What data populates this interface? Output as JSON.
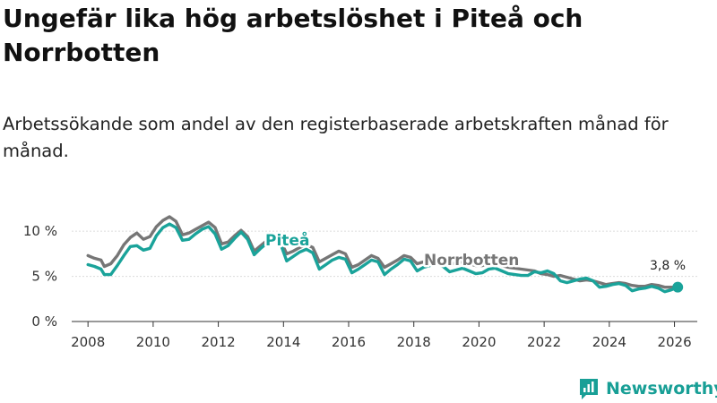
{
  "chart_data": {
    "type": "line",
    "title": "Ungefär lika hög arbetslöshet i Piteå och Norrbotten",
    "subtitle": "Arbetssökande som andel av den registerbaserade arbetskraften månad för månad.",
    "xlabel": "",
    "ylabel": "",
    "xlim": [
      2007.5,
      2026.7
    ],
    "ylim": [
      0,
      12
    ],
    "x_ticks": [
      {
        "value": 2008,
        "label": "2008"
      },
      {
        "value": 2010,
        "label": "2010"
      },
      {
        "value": 2012,
        "label": "2012"
      },
      {
        "value": 2014,
        "label": "2014"
      },
      {
        "value": 2016,
        "label": "2016"
      },
      {
        "value": 2018,
        "label": "2018"
      },
      {
        "value": 2020,
        "label": "2020"
      },
      {
        "value": 2022,
        "label": "2022"
      },
      {
        "value": 2024,
        "label": "2024"
      },
      {
        "value": 2026,
        "label": "2026"
      }
    ],
    "y_ticks": [
      {
        "value": 0,
        "label": "0 %"
      },
      {
        "value": 5,
        "label": "5 %"
      },
      {
        "value": 10,
        "label": "10 %"
      }
    ],
    "series": [
      {
        "name": "Norrbotten",
        "color": "#767676",
        "points": [
          [
            2008.0,
            7.3
          ],
          [
            2008.2,
            7.0
          ],
          [
            2008.4,
            6.8
          ],
          [
            2008.5,
            6.1
          ],
          [
            2008.7,
            6.4
          ],
          [
            2008.9,
            7.3
          ],
          [
            2009.1,
            8.5
          ],
          [
            2009.3,
            9.3
          ],
          [
            2009.5,
            9.8
          ],
          [
            2009.7,
            9.1
          ],
          [
            2009.9,
            9.4
          ],
          [
            2010.1,
            10.5
          ],
          [
            2010.3,
            11.2
          ],
          [
            2010.5,
            11.6
          ],
          [
            2010.7,
            11.1
          ],
          [
            2010.9,
            9.6
          ],
          [
            2011.1,
            9.8
          ],
          [
            2011.3,
            10.2
          ],
          [
            2011.5,
            10.6
          ],
          [
            2011.7,
            11.0
          ],
          [
            2011.9,
            10.4
          ],
          [
            2012.1,
            8.6
          ],
          [
            2012.3,
            8.8
          ],
          [
            2012.5,
            9.5
          ],
          [
            2012.7,
            10.1
          ],
          [
            2012.9,
            9.4
          ],
          [
            2013.1,
            7.8
          ],
          [
            2013.3,
            8.4
          ],
          [
            2013.5,
            9.0
          ],
          [
            2013.7,
            9.6
          ],
          [
            2013.9,
            9.0
          ],
          [
            2014.1,
            7.5
          ],
          [
            2014.3,
            7.8
          ],
          [
            2014.5,
            8.2
          ],
          [
            2014.7,
            8.5
          ],
          [
            2014.9,
            8.2
          ],
          [
            2015.1,
            6.6
          ],
          [
            2015.3,
            7.0
          ],
          [
            2015.5,
            7.4
          ],
          [
            2015.7,
            7.8
          ],
          [
            2015.9,
            7.5
          ],
          [
            2016.1,
            6.0
          ],
          [
            2016.3,
            6.3
          ],
          [
            2016.5,
            6.8
          ],
          [
            2016.7,
            7.3
          ],
          [
            2016.9,
            7.0
          ],
          [
            2017.1,
            6.0
          ],
          [
            2017.3,
            6.4
          ],
          [
            2017.5,
            6.8
          ],
          [
            2017.7,
            7.3
          ],
          [
            2017.9,
            7.1
          ],
          [
            2018.1,
            6.4
          ],
          [
            2018.3,
            6.6
          ],
          [
            2018.5,
            6.8
          ],
          [
            2018.7,
            7.0
          ],
          [
            2018.9,
            6.9
          ],
          [
            2019.1,
            6.3
          ],
          [
            2019.3,
            6.5
          ],
          [
            2019.5,
            6.6
          ],
          [
            2019.7,
            6.4
          ],
          [
            2019.9,
            6.2
          ],
          [
            2020.1,
            6.2
          ],
          [
            2020.3,
            6.5
          ],
          [
            2020.5,
            6.5
          ],
          [
            2020.7,
            6.2
          ],
          [
            2020.9,
            6.0
          ],
          [
            2021.1,
            5.9
          ],
          [
            2021.3,
            5.8
          ],
          [
            2021.5,
            5.7
          ],
          [
            2021.7,
            5.6
          ],
          [
            2021.9,
            5.3
          ],
          [
            2022.1,
            5.2
          ],
          [
            2022.3,
            5.0
          ],
          [
            2022.5,
            5.1
          ],
          [
            2022.7,
            4.9
          ],
          [
            2022.9,
            4.7
          ],
          [
            2023.1,
            4.5
          ],
          [
            2023.3,
            4.6
          ],
          [
            2023.5,
            4.5
          ],
          [
            2023.7,
            4.3
          ],
          [
            2023.9,
            4.1
          ],
          [
            2024.1,
            4.2
          ],
          [
            2024.3,
            4.3
          ],
          [
            2024.5,
            4.2
          ],
          [
            2024.7,
            4.0
          ],
          [
            2024.9,
            3.9
          ],
          [
            2025.1,
            3.9
          ],
          [
            2025.3,
            4.1
          ],
          [
            2025.5,
            4.0
          ],
          [
            2025.7,
            3.8
          ],
          [
            2025.9,
            3.8
          ],
          [
            2026.1,
            3.8
          ]
        ]
      },
      {
        "name": "Piteå",
        "color": "#1aa39a",
        "points": [
          [
            2008.0,
            6.3
          ],
          [
            2008.2,
            6.1
          ],
          [
            2008.4,
            5.8
          ],
          [
            2008.5,
            5.2
          ],
          [
            2008.7,
            5.2
          ],
          [
            2008.9,
            6.2
          ],
          [
            2009.1,
            7.3
          ],
          [
            2009.3,
            8.3
          ],
          [
            2009.5,
            8.4
          ],
          [
            2009.7,
            7.9
          ],
          [
            2009.9,
            8.1
          ],
          [
            2010.1,
            9.5
          ],
          [
            2010.3,
            10.4
          ],
          [
            2010.5,
            10.8
          ],
          [
            2010.7,
            10.4
          ],
          [
            2010.9,
            9.0
          ],
          [
            2011.1,
            9.1
          ],
          [
            2011.3,
            9.7
          ],
          [
            2011.5,
            10.2
          ],
          [
            2011.7,
            10.5
          ],
          [
            2011.9,
            9.7
          ],
          [
            2012.1,
            8.0
          ],
          [
            2012.3,
            8.4
          ],
          [
            2012.5,
            9.2
          ],
          [
            2012.7,
            9.9
          ],
          [
            2012.9,
            9.1
          ],
          [
            2013.1,
            7.4
          ],
          [
            2013.3,
            8.1
          ],
          [
            2013.5,
            8.7
          ],
          [
            2013.7,
            9.2
          ],
          [
            2013.9,
            8.7
          ],
          [
            2014.1,
            6.7
          ],
          [
            2014.3,
            7.2
          ],
          [
            2014.5,
            7.7
          ],
          [
            2014.7,
            8.0
          ],
          [
            2014.9,
            7.6
          ],
          [
            2015.1,
            5.8
          ],
          [
            2015.3,
            6.3
          ],
          [
            2015.5,
            6.8
          ],
          [
            2015.7,
            7.1
          ],
          [
            2015.9,
            6.9
          ],
          [
            2016.1,
            5.4
          ],
          [
            2016.3,
            5.8
          ],
          [
            2016.5,
            6.3
          ],
          [
            2016.7,
            6.8
          ],
          [
            2016.9,
            6.6
          ],
          [
            2017.1,
            5.2
          ],
          [
            2017.3,
            5.8
          ],
          [
            2017.5,
            6.3
          ],
          [
            2017.7,
            6.9
          ],
          [
            2017.9,
            6.7
          ],
          [
            2018.1,
            5.6
          ],
          [
            2018.3,
            6.0
          ],
          [
            2018.5,
            6.2
          ],
          [
            2018.7,
            6.4
          ],
          [
            2018.9,
            6.1
          ],
          [
            2019.1,
            5.5
          ],
          [
            2019.3,
            5.7
          ],
          [
            2019.5,
            5.9
          ],
          [
            2019.7,
            5.6
          ],
          [
            2019.9,
            5.3
          ],
          [
            2020.1,
            5.4
          ],
          [
            2020.3,
            5.8
          ],
          [
            2020.5,
            5.9
          ],
          [
            2020.7,
            5.6
          ],
          [
            2020.9,
            5.3
          ],
          [
            2021.1,
            5.2
          ],
          [
            2021.3,
            5.1
          ],
          [
            2021.5,
            5.1
          ],
          [
            2021.7,
            5.5
          ],
          [
            2021.9,
            5.4
          ],
          [
            2022.1,
            5.6
          ],
          [
            2022.3,
            5.3
          ],
          [
            2022.5,
            4.5
          ],
          [
            2022.7,
            4.3
          ],
          [
            2022.9,
            4.5
          ],
          [
            2023.1,
            4.7
          ],
          [
            2023.3,
            4.8
          ],
          [
            2023.5,
            4.5
          ],
          [
            2023.7,
            3.8
          ],
          [
            2023.9,
            3.9
          ],
          [
            2024.1,
            4.1
          ],
          [
            2024.3,
            4.2
          ],
          [
            2024.5,
            4.0
          ],
          [
            2024.7,
            3.4
          ],
          [
            2024.9,
            3.6
          ],
          [
            2025.1,
            3.7
          ],
          [
            2025.3,
            3.9
          ],
          [
            2025.5,
            3.7
          ],
          [
            2025.7,
            3.3
          ],
          [
            2025.9,
            3.5
          ],
          [
            2026.1,
            3.8
          ]
        ]
      }
    ],
    "annotations": {
      "pitea_label": "Piteå",
      "norrbotten_label": "Norrbotten",
      "end_value_label": "3,8 %"
    },
    "grid": true,
    "legend": "inline labels"
  },
  "brand": {
    "name": "Newsworthy",
    "icon": "newsworthy-logo-icon",
    "color": "#189f96"
  }
}
